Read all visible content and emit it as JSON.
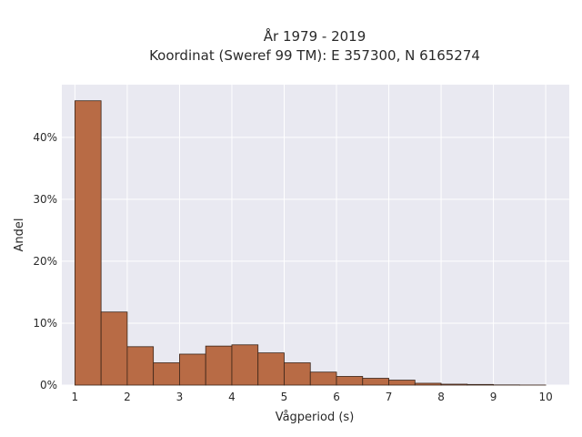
{
  "chart_data": {
    "type": "bar",
    "title": [
      "År 1979 - 2019",
      "Koordinat (Sweref 99 TM): E 357300, N 6165274"
    ],
    "xlabel": "Vågperiod (s)",
    "ylabel": "Andel",
    "xlim": [
      0.75,
      10.45
    ],
    "ylim": [
      0,
      48.5
    ],
    "x_ticks": [
      1,
      2,
      3,
      4,
      5,
      6,
      7,
      8,
      9,
      10
    ],
    "y_ticks": [
      0,
      10,
      20,
      30,
      40
    ],
    "y_tick_labels": [
      "0%",
      "10%",
      "20%",
      "30%",
      "40%"
    ],
    "bin_width": 0.5,
    "bins": [
      {
        "start": 1.0,
        "value": 45.9
      },
      {
        "start": 1.5,
        "value": 11.8
      },
      {
        "start": 2.0,
        "value": 6.2
      },
      {
        "start": 2.5,
        "value": 3.6
      },
      {
        "start": 3.0,
        "value": 5.0
      },
      {
        "start": 3.5,
        "value": 6.3
      },
      {
        "start": 4.0,
        "value": 6.5
      },
      {
        "start": 4.5,
        "value": 5.2
      },
      {
        "start": 5.0,
        "value": 3.6
      },
      {
        "start": 5.5,
        "value": 2.1
      },
      {
        "start": 6.0,
        "value": 1.4
      },
      {
        "start": 6.5,
        "value": 1.1
      },
      {
        "start": 7.0,
        "value": 0.8
      },
      {
        "start": 7.5,
        "value": 0.3
      },
      {
        "start": 8.0,
        "value": 0.15
      },
      {
        "start": 8.5,
        "value": 0.1
      },
      {
        "start": 9.0,
        "value": 0.03
      },
      {
        "start": 9.5,
        "value": 0.01
      }
    ],
    "grid": true,
    "colors": {
      "bar": "#b86b45",
      "bar_edge": "#3a2418",
      "plot_bg": "#e9e9f1",
      "grid": "#ffffff"
    }
  }
}
